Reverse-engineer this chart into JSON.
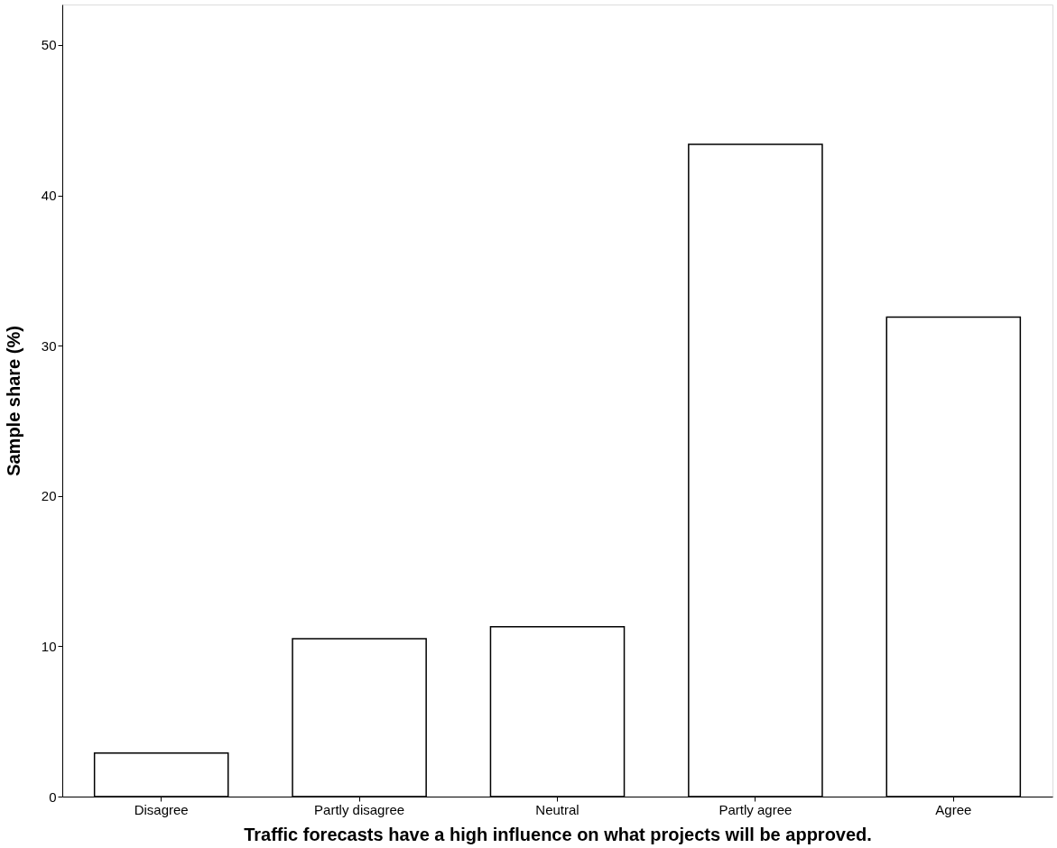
{
  "chart_data": {
    "type": "bar",
    "xlabel": "Traffic forecasts have a high influence on what projects will be approved.",
    "ylabel": "Sample share (%)",
    "categories": [
      "Disagree",
      "Partly disagree",
      "Neutral",
      "Partly agree",
      "Agree"
    ],
    "values": [
      2.9,
      10.5,
      11.3,
      43.4,
      31.9
    ],
    "color": "#ffffff",
    "ylim": [
      0,
      52.7
    ],
    "yticks": [
      0,
      10,
      20,
      30,
      40,
      50
    ],
    "grid": false
  }
}
